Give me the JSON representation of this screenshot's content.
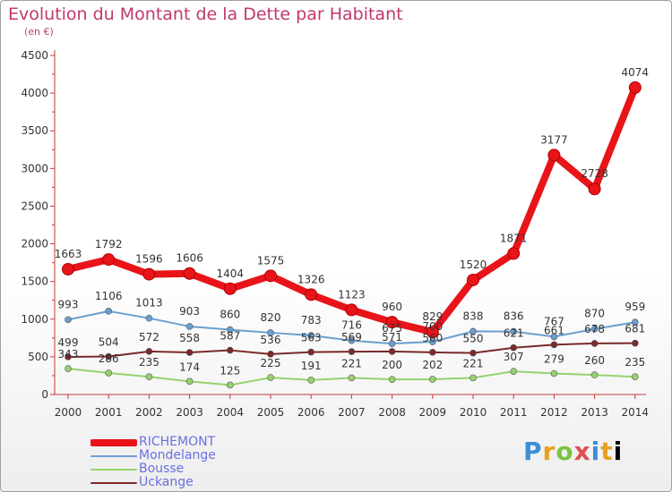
{
  "chart_data": {
    "type": "line",
    "title": "Evolution du Montant de la Dette par Habitant",
    "subtitle": "(en €)",
    "x": [
      "2000",
      "2001",
      "2002",
      "2003",
      "2004",
      "2005",
      "2006",
      "2007",
      "2008",
      "2009",
      "2010",
      "2011",
      "2012",
      "2013",
      "2014"
    ],
    "yticks": [
      "0",
      "500",
      "1000",
      "1500",
      "2000",
      "2500",
      "3000",
      "3500",
      "4000",
      "4500"
    ],
    "ylim": [
      0,
      4500
    ],
    "grid": false,
    "legend_position": "bottom-left",
    "series": [
      {
        "name": "RICHEMONT",
        "color": "#e8141a",
        "width": 8,
        "values": [
          1663,
          1792,
          1596,
          1606,
          1404,
          1575,
          1326,
          1123,
          960,
          829,
          1520,
          1871,
          3177,
          2728,
          4074
        ],
        "labels": [
          "1663",
          "1792",
          "1596",
          "1606",
          "1404",
          "1575",
          "1326",
          "1123",
          "960",
          "829",
          "1520",
          "1871",
          "3177",
          "2728",
          "4074"
        ]
      },
      {
        "name": "Mondelange",
        "color": "#6a9fd0",
        "width": 2,
        "values": [
          993,
          1106,
          1013,
          903,
          860,
          820,
          783,
          716,
          675,
          700,
          838,
          836,
          767,
          870,
          959
        ],
        "labels": [
          "993",
          "1106",
          "1013",
          "903",
          "860",
          "820",
          "783",
          "716",
          "675",
          "700",
          "838",
          "836",
          "767",
          "870",
          "959"
        ]
      },
      {
        "name": "Bousse",
        "color": "#96d26e",
        "width": 2,
        "values": [
          343,
          286,
          235,
          174,
          125,
          225,
          191,
          221,
          200,
          202,
          221,
          307,
          279,
          260,
          235
        ],
        "labels": [
          "343",
          "286",
          "235",
          "174",
          "125",
          "225",
          "191",
          "221",
          "200",
          "202",
          "221",
          "307",
          "279",
          "260",
          "235"
        ]
      },
      {
        "name": "Uckange",
        "color": "#7a2a2a",
        "width": 2,
        "values": [
          499,
          504,
          572,
          558,
          587,
          536,
          563,
          569,
          571,
          560,
          550,
          621,
          661,
          678,
          681
        ],
        "labels": [
          "499",
          "504",
          "572",
          "558",
          "587",
          "536",
          "563",
          "569",
          "571",
          "560",
          "550",
          "621",
          "661",
          "678",
          "681"
        ]
      }
    ]
  },
  "logo": {
    "letters": [
      "P",
      "r",
      "o",
      "x",
      "i",
      "t",
      "i"
    ]
  }
}
